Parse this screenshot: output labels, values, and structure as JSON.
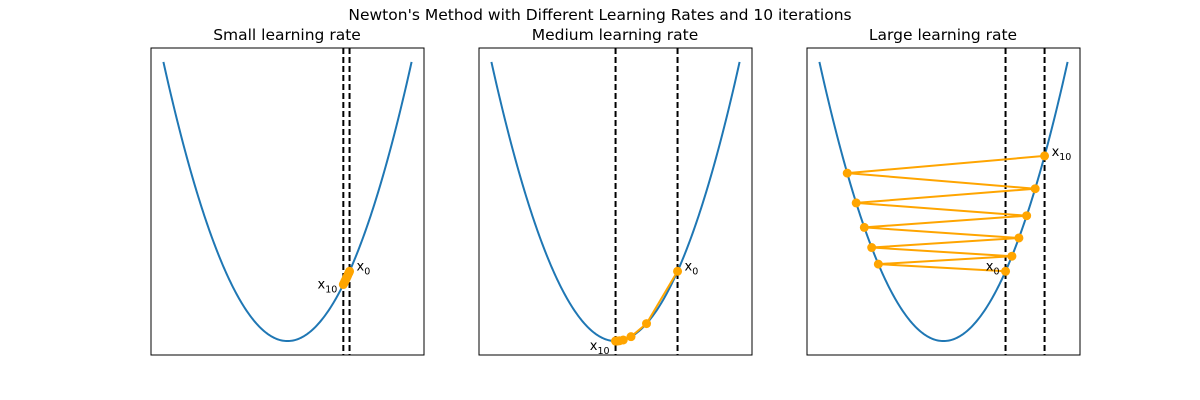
{
  "figure": {
    "title": "Newton's Method with Different Learning Rates and 10 iterations"
  },
  "chart_data": [
    {
      "type": "line",
      "title": "Small learning rate",
      "curve": {
        "function": "x^2",
        "x_range": [
          -2,
          2
        ],
        "color": "#1f77b4"
      },
      "xlim": [
        -2.2,
        2.2
      ],
      "ylim": [
        -0.2,
        4.2
      ],
      "iterates": {
        "x": [
          1.0,
          0.99,
          0.98,
          0.97,
          0.96,
          0.95,
          0.94,
          0.93,
          0.92,
          0.91,
          0.9
        ],
        "color": "#ffa500"
      },
      "vlines": [
        1.0,
        0.9
      ],
      "start_label": {
        "base": "x",
        "sub": "0"
      },
      "end_label": {
        "base": "x",
        "sub": "10"
      }
    },
    {
      "type": "line",
      "title": "Medium learning rate",
      "curve": {
        "function": "x^2",
        "x_range": [
          -2,
          2
        ],
        "color": "#1f77b4"
      },
      "xlim": [
        -2.2,
        2.2
      ],
      "ylim": [
        -0.2,
        4.2
      ],
      "iterates": {
        "x": [
          1.0,
          0.5,
          0.25,
          0.125,
          0.0625,
          0.03125,
          0.015625,
          0.0078125,
          0.00390625,
          0.00195313,
          0.00097656
        ],
        "color": "#ffa500"
      },
      "vlines": [
        1.0,
        0.001
      ],
      "start_label": {
        "base": "x",
        "sub": "0"
      },
      "end_label": {
        "base": "x",
        "sub": "10"
      }
    },
    {
      "type": "line",
      "title": "Large learning rate",
      "curve": {
        "function": "x^2",
        "x_range": [
          -2,
          2
        ],
        "color": "#1f77b4"
      },
      "xlim": [
        -2.2,
        2.2
      ],
      "ylim": [
        -0.2,
        4.2
      ],
      "iterates": {
        "x": [
          1.0,
          -1.05,
          1.1025,
          -1.15763,
          1.21551,
          -1.27628,
          1.3401,
          -1.4071,
          1.47746,
          -1.55133,
          1.62889
        ],
        "color": "#ffa500"
      },
      "vlines": [
        1.0,
        1.62889
      ],
      "start_label": {
        "base": "x",
        "sub": "0"
      },
      "end_label": {
        "base": "x",
        "sub": "10"
      }
    }
  ]
}
